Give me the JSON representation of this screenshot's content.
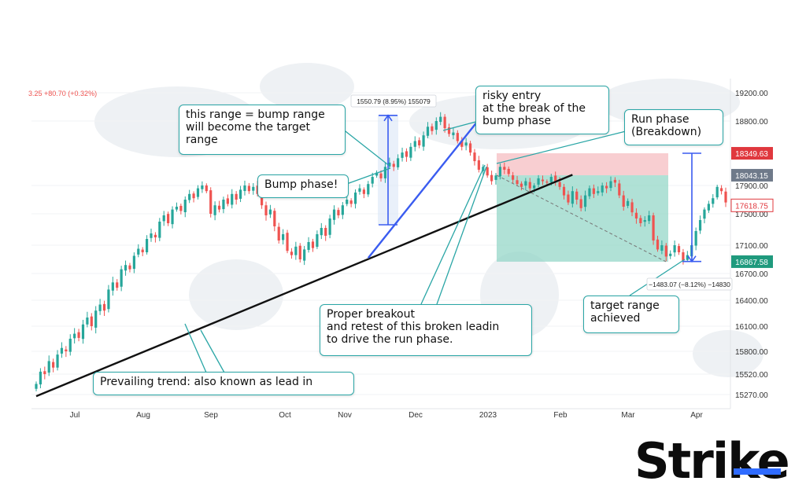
{
  "quote": "3.25  +80.70 (+0.32%)",
  "measure_top": "1550.79 (8.95%) 155079",
  "measure_bottom": "−1483.07 (−8.12%) −14830",
  "annotations": {
    "bump_range": "this range = bump range\nwill become the target\nrange",
    "bump_phase": "Bump phase!",
    "risky_entry": "risky entry\nat the break of the\nbump phase",
    "run_phase": "Run phase\n(Breakdown)",
    "proper_breakout": "Proper breakout\nand retest of this broken leadin\nto drive the run phase.",
    "target_achieved": "target range\nachieved",
    "prevailing_trend": "Prevailing trend: also known as lead in"
  },
  "price_badges": [
    {
      "label": "18349.63",
      "color": "#e0383e"
    },
    {
      "label": "18043.15",
      "color": "#6f7a8a"
    },
    {
      "label": "17618.75",
      "color": "#ffffff"
    },
    {
      "label": "16867.58",
      "color": "#1f9a7d"
    }
  ],
  "logo": "Strike",
  "colors": {
    "up": "#26a69a",
    "down": "#ef5350",
    "accent": "#2aa6a6",
    "blue": "#3a5cf0",
    "trend": "#111111"
  },
  "chart_data": {
    "type": "candlestick",
    "x_labels": [
      "Jul",
      "Aug",
      "Sep",
      "Oct",
      "Nov",
      "Dec",
      "2023",
      "Feb",
      "Mar",
      "Apr"
    ],
    "y_ticks": [
      19200,
      18800,
      17900,
      17500,
      17100,
      16700,
      16400,
      16100,
      15800,
      15520,
      15270
    ],
    "y_tick_labels": [
      "19200.00",
      "18800.00",
      "17900.00",
      "17500.00",
      "17100.00",
      "16700.00",
      "16400.00",
      "16100.00",
      "15800.00",
      "15520.00",
      "15270.00"
    ],
    "closes": [
      15400,
      15550,
      15520,
      15680,
      15600,
      15760,
      15840,
      15800,
      15950,
      16010,
      15960,
      16120,
      16200,
      16100,
      16280,
      16350,
      16280,
      16520,
      16600,
      16540,
      16760,
      16820,
      16760,
      16950,
      17050,
      17000,
      17180,
      17250,
      17200,
      17400,
      17480,
      17380,
      17560,
      17600,
      17540,
      17700,
      17780,
      17720,
      17860,
      17900,
      17820,
      17500,
      17620,
      17560,
      17700,
      17640,
      17780,
      17700,
      17840,
      17900,
      17820,
      17880,
      17780,
      17620,
      17480,
      17560,
      17340,
      17160,
      17240,
      17020,
      16960,
      17080,
      16900,
      17040,
      17140,
      17060,
      17240,
      17320,
      17220,
      17440,
      17560,
      17480,
      17620,
      17700,
      17640,
      17800,
      17860,
      17780,
      17920,
      18020,
      18080,
      18000,
      18160,
      18220,
      18160,
      18280,
      18360,
      18300,
      18440,
      18520,
      18460,
      18600,
      18720,
      18660,
      18800,
      18860,
      18700,
      18620,
      18640,
      18520,
      18440,
      18500,
      18360,
      18240,
      18120,
      18160,
      18040,
      17960,
      18040,
      18160,
      18120,
      18060,
      17980,
      17920,
      17880,
      17960,
      17860,
      17900,
      18000,
      17960,
      17940,
      18020,
      17960,
      17880,
      17760,
      17660,
      17820,
      17700,
      17580,
      17760,
      17860,
      17780,
      17820,
      17900,
      17860,
      17960,
      17940,
      17760,
      17600,
      17680,
      17520,
      17440,
      17380,
      17420,
      17480,
      17160,
      17040,
      17100,
      16940,
      16980,
      17100,
      17000,
      16880,
      16960,
      17100,
      17280,
      17420,
      17560,
      17640,
      17720,
      17880,
      17820,
      17660
    ],
    "trend_line": [
      [
        0,
        15250
      ],
      [
        126,
        18050
      ]
    ],
    "bump_line": [
      [
        78,
        16920
      ],
      [
        106,
        18970
      ]
    ],
    "bump_range": [
      17360,
      18880
    ],
    "target_range": [
      18350,
      16870
    ],
    "stop_zone": [
      18350,
      18043
    ],
    "profit_zone": [
      18043,
      16867
    ]
  }
}
